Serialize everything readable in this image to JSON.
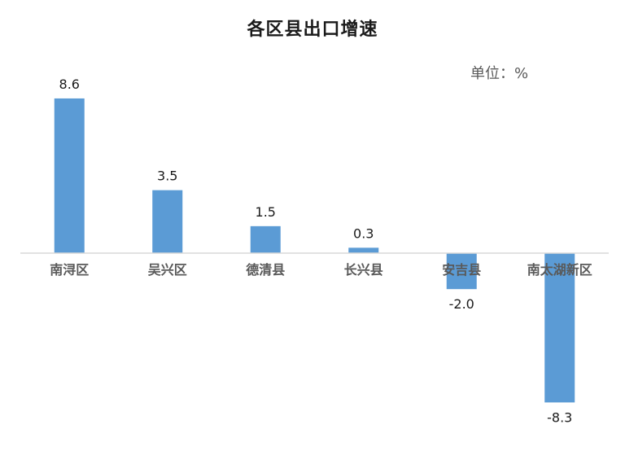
{
  "chart_data": {
    "type": "bar",
    "title": "各区县出口增速",
    "unit": "单位：%",
    "categories": [
      "南浔区",
      "吴兴区",
      "德清县",
      "长兴县",
      "安吉县",
      "南太湖新区"
    ],
    "values": [
      8.6,
      3.5,
      1.5,
      0.3,
      -2.0,
      -8.3
    ],
    "value_labels": [
      "8.6",
      "3.5",
      "1.5",
      "0.3",
      "-2.0",
      "-8.3"
    ],
    "bar_color": "#5b9bd5",
    "axis_color": "#d9d9d9",
    "grid": false,
    "legend": "none"
  }
}
